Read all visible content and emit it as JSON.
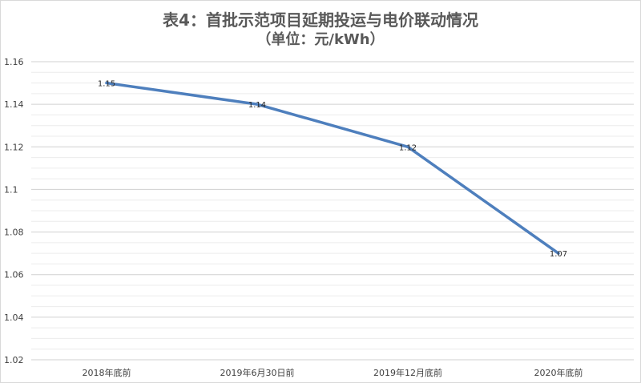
{
  "chart_data": {
    "type": "line",
    "title": "表4：首批示范项目延期投运与电价联动情况",
    "subtitle": "（单位：元/kWh）",
    "categories": [
      "2018年底前",
      "2019年6月30日前",
      "2019年12月底前",
      "2020年底前"
    ],
    "series": [
      {
        "values": [
          1.15,
          1.14,
          1.12,
          1.07
        ]
      }
    ],
    "data_labels": [
      "1.15",
      "1.14",
      "1.12",
      "1.07"
    ],
    "y_ticks": [
      "1.02",
      "1.04",
      "1.06",
      "1.08",
      "1.1",
      "1.12",
      "1.14",
      "1.16"
    ],
    "ylim": [
      1.02,
      1.16
    ],
    "grid": true,
    "line_color": "#4e7fbd",
    "grid_color": "#d9d9d9"
  }
}
